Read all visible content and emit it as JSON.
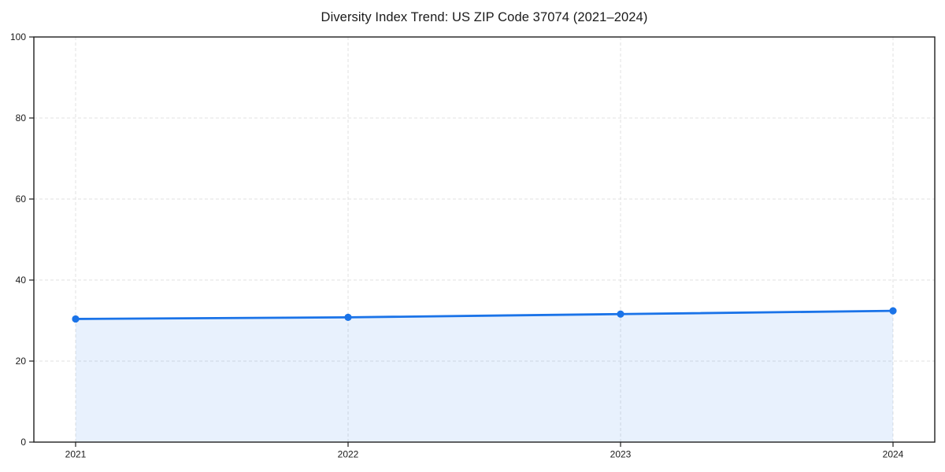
{
  "chart_data": {
    "type": "area",
    "title": "Diversity Index Trend: US ZIP Code 37074 (2021–2024)",
    "x": [
      "2021",
      "2022",
      "2023",
      "2024"
    ],
    "series": [
      {
        "name": "Diversity Index",
        "values": [
          30.4,
          30.8,
          31.6,
          32.4
        ]
      }
    ],
    "xlabel": "",
    "ylabel": "",
    "ylim": [
      0,
      100
    ],
    "yticks": [
      0,
      20,
      40,
      60,
      80,
      100
    ],
    "grid": true,
    "grid_style": "dashed",
    "legend": false,
    "marker": "circle",
    "colors": {
      "line": "#1a73e8",
      "marker": "#1a73e8",
      "area_fill": "rgba(26,115,232,0.10)",
      "grid": "#e0e0e0",
      "spine": "#1f1f1f",
      "text": "#1a1a1a",
      "background": "#ffffff"
    }
  }
}
